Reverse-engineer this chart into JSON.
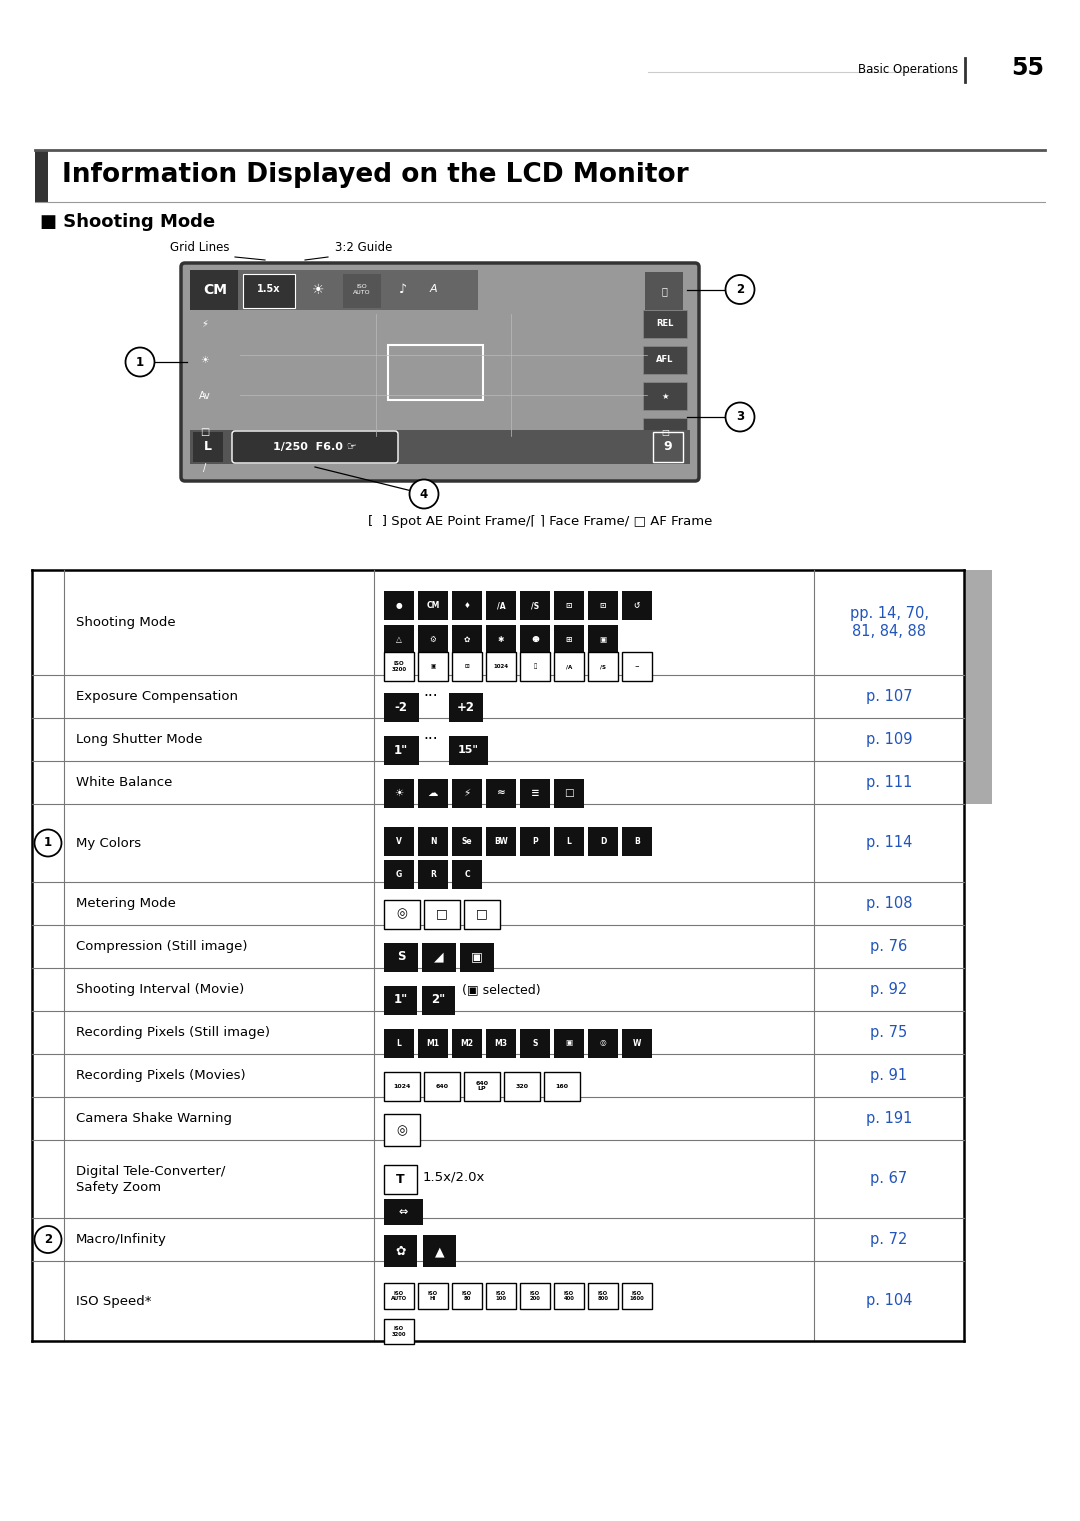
{
  "page_header_text": "Basic Operations",
  "page_number": "55",
  "main_title": "Information Displayed on the LCD Monitor",
  "section_title": "■ Shooting Mode",
  "frame_label": "[  ] Spot AE Point Frame/⌈ ⌉ Face Frame/ □ AF Frame",
  "table_rows": [
    {
      "label_number": "",
      "label": "Shooting Mode",
      "page_ref": "pp. 14, 70,\n81, 84, 88"
    },
    {
      "label_number": "",
      "label": "Exposure Compensation",
      "page_ref": "p. 107"
    },
    {
      "label_number": "",
      "label": "Long Shutter Mode",
      "page_ref": "p. 109"
    },
    {
      "label_number": "",
      "label": "White Balance",
      "page_ref": "p. 111"
    },
    {
      "label_number": "1",
      "label": "My Colors",
      "page_ref": "p. 114"
    },
    {
      "label_number": "",
      "label": "Metering Mode",
      "page_ref": "p. 108"
    },
    {
      "label_number": "",
      "label": "Compression (Still image)",
      "page_ref": "p. 76"
    },
    {
      "label_number": "",
      "label": "Shooting Interval (Movie)",
      "page_ref": "p. 92"
    },
    {
      "label_number": "",
      "label": "Recording Pixels (Still image)",
      "page_ref": "p. 75"
    },
    {
      "label_number": "",
      "label": "Recording Pixels (Movies)",
      "page_ref": "p. 91"
    },
    {
      "label_number": "",
      "label": "Camera Shake Warning",
      "page_ref": "p. 191"
    },
    {
      "label_number": "",
      "label": "Digital Tele-Converter/\nSafety Zoom",
      "page_ref": "p. 67"
    },
    {
      "label_number": "2",
      "label": "Macro/Infinity",
      "page_ref": "p. 72"
    },
    {
      "label_number": "",
      "label": "ISO Speed*",
      "page_ref": "p. 104"
    }
  ],
  "bg_color": "#ffffff",
  "text_color": "#000000",
  "blue_color": "#2255bb",
  "header_bar_color": "#555555",
  "icon_bg_dark": "#111111",
  "icon_bg_mid": "#444444",
  "gray_bg": "#888888"
}
